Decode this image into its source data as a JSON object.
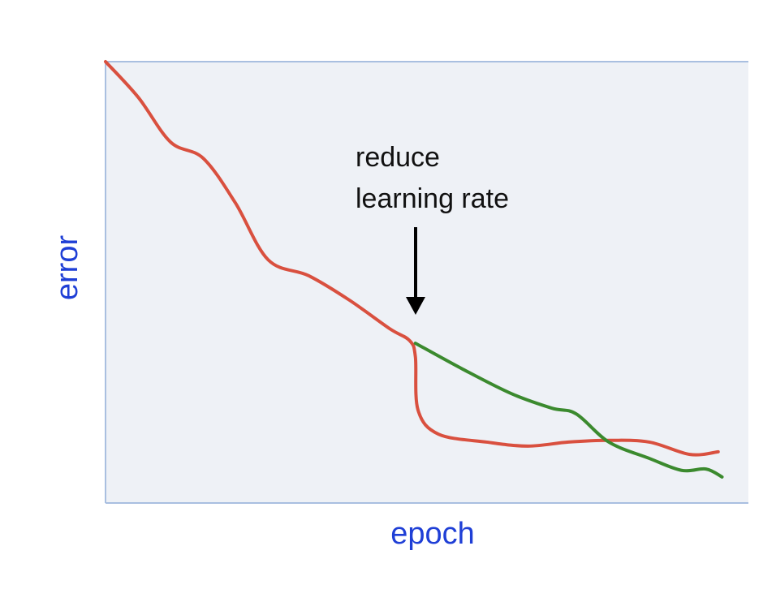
{
  "chart_data": {
    "type": "line",
    "xlabel": "epoch",
    "ylabel": "error",
    "annotation": [
      "reduce",
      "learning rate"
    ],
    "xlim": [
      0,
      100
    ],
    "ylim": [
      0,
      100
    ],
    "series": [
      {
        "color": "#d9503f",
        "x": [
          0,
          5.1,
          10.1,
          15.2,
          20.2,
          25.3,
          31.6,
          37.9,
          44.2,
          47.3,
          48.2,
          48.6,
          51.8,
          59.3,
          65.7,
          72,
          78.3,
          84.6,
          90.9,
          95.3
        ],
        "values": [
          100,
          91.9,
          81.8,
          78.1,
          68,
          55.1,
          51.5,
          46,
          39.5,
          36.8,
          33.1,
          21.1,
          15.6,
          13.8,
          12.9,
          13.8,
          14.2,
          13.8,
          11,
          11.6
        ]
      },
      {
        "color": "#3b8a2e",
        "x": [
          48.2,
          55.6,
          63.1,
          69.4,
          73.2,
          78.3,
          84.6,
          89.6,
          93.4,
          95.9
        ],
        "values": [
          36.2,
          30.3,
          24.8,
          21.5,
          20.2,
          13.8,
          10.1,
          7.4,
          7.7,
          5.9
        ]
      }
    ]
  }
}
